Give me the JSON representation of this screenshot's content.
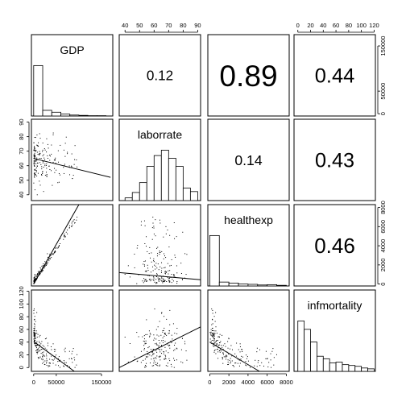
{
  "chart_data": {
    "type": "scatter",
    "title": "",
    "variables": [
      "GDP",
      "laborrate",
      "healthexp",
      "infmortality"
    ],
    "axes": {
      "GDP": {
        "range": [
          -5000,
          175000
        ],
        "ticks": [
          0,
          50000,
          150000
        ],
        "tick_labels": [
          "0",
          "50000",
          "150000"
        ]
      },
      "laborrate": {
        "range": [
          36,
          92
        ],
        "ticks": [
          40,
          50,
          60,
          70,
          80,
          90
        ],
        "tick_labels": [
          "40",
          "50",
          "60",
          "70",
          "80",
          "90"
        ]
      },
      "healthexp": {
        "range": [
          -200,
          8300
        ],
        "ticks": [
          0,
          2000,
          4000,
          6000,
          8000
        ],
        "tick_labels": [
          "0",
          "2000",
          "4000",
          "6000",
          "8000"
        ]
      },
      "infmortality": {
        "range": [
          -6,
          122
        ],
        "ticks": [
          0,
          20,
          40,
          60,
          80,
          100,
          120
        ],
        "tick_labels": [
          "0",
          "20",
          "40",
          "60",
          "80",
          "100",
          "120"
        ]
      }
    },
    "correlations": [
      {
        "pair": [
          "GDP",
          "laborrate"
        ],
        "label": "0.12",
        "value": 0.12
      },
      {
        "pair": [
          "GDP",
          "healthexp"
        ],
        "label": "0.89",
        "value": 0.89
      },
      {
        "pair": [
          "GDP",
          "infmortality"
        ],
        "label": "0.44",
        "value": 0.44
      },
      {
        "pair": [
          "laborrate",
          "healthexp"
        ],
        "label": "0.14",
        "value": 0.14
      },
      {
        "pair": [
          "laborrate",
          "infmortality"
        ],
        "label": "0.43",
        "value": 0.43
      },
      {
        "pair": [
          "healthexp",
          "infmortality"
        ],
        "label": "0.46",
        "value": 0.46
      }
    ],
    "histograms": {
      "GDP": {
        "bin_edges": [
          0,
          20000,
          40000,
          60000,
          80000,
          100000,
          120000,
          140000,
          160000
        ],
        "counts": [
          160,
          18,
          12,
          6,
          3,
          2,
          1,
          1
        ]
      },
      "laborrate": {
        "bin_edges": [
          40,
          45,
          50,
          55,
          60,
          65,
          70,
          75,
          80,
          85,
          90
        ],
        "counts": [
          3,
          9,
          20,
          38,
          50,
          56,
          47,
          38,
          14,
          10
        ]
      },
      "healthexp": {
        "bin_edges": [
          0,
          1000,
          2000,
          3000,
          4000,
          5000,
          6000,
          7000,
          8000
        ],
        "counts": [
          155,
          12,
          9,
          6,
          5,
          3,
          4,
          2
        ]
      },
      "infmortality": {
        "bin_edges": [
          0,
          10,
          20,
          30,
          40,
          50,
          60,
          70,
          80,
          90,
          100,
          110,
          120
        ],
        "counts": [
          60,
          50,
          35,
          18,
          15,
          10,
          11,
          8,
          7,
          6,
          4,
          3
        ]
      }
    },
    "regression_lines": [
      {
        "x": "GDP",
        "y": "laborrate",
        "points": [
          [
            0,
            65
          ],
          [
            170000,
            52
          ]
        ]
      },
      {
        "x": "GDP",
        "y": "healthexp",
        "points": [
          [
            0,
            0
          ],
          [
            100000,
            8300
          ]
        ]
      },
      {
        "x": "GDP",
        "y": "infmortality",
        "points": [
          [
            0,
            41
          ],
          [
            90000,
            -6
          ]
        ]
      },
      {
        "x": "laborrate",
        "y": "healthexp",
        "points": [
          [
            36,
            1200
          ],
          [
            92,
            450
          ]
        ]
      },
      {
        "x": "laborrate",
        "y": "infmortality",
        "points": [
          [
            36,
            0
          ],
          [
            92,
            64
          ]
        ]
      },
      {
        "x": "healthexp",
        "y": "infmortality",
        "points": [
          [
            0,
            40
          ],
          [
            5200,
            -6
          ]
        ]
      }
    ],
    "scatter_shapes": {
      "GDP-laborrate": {
        "n": 190,
        "x_mean": 12000,
        "x_skew": true,
        "y_center": 63,
        "y_spread": 8
      },
      "GDP-healthexp": {
        "n": 190,
        "relation": "linear",
        "slope": 0.08
      },
      "GDP-infmortality": {
        "n": 190,
        "relation": "decay"
      },
      "laborrate-healthexp": {
        "n": 190,
        "relation": "flat_skew"
      },
      "laborrate-infmortality": {
        "n": 190,
        "relation": "increasing"
      },
      "healthexp-infmortality": {
        "n": 190,
        "relation": "decay"
      }
    }
  }
}
